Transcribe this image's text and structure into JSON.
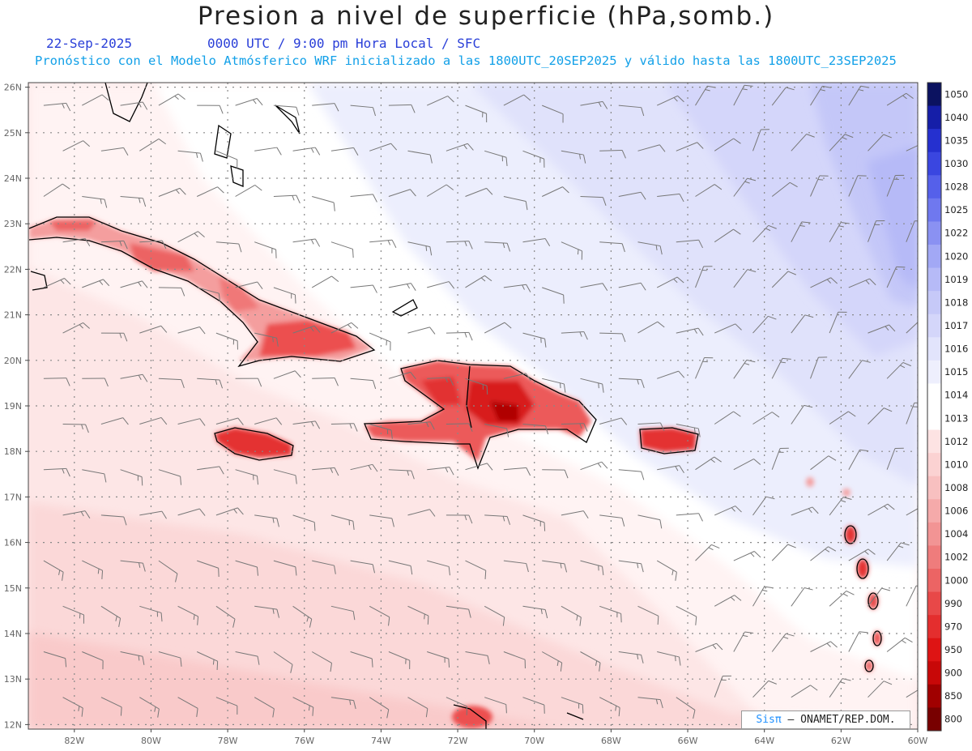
{
  "header": {
    "title": "Presion a nivel de superficie (hPa,somb.)",
    "date": "22-Sep-2025",
    "valid_time": "0000 UTC / 9:00 pm Hora Local / SFC",
    "forecast_note": "Pronóstico con el Modelo Atmósferico WRF inicializado a las 1800UTC_20SEP2025 y válido hasta las 1800UTC_23SEP2025"
  },
  "map": {
    "lat_labels": [
      "26N",
      "25N",
      "24N",
      "23N",
      "22N",
      "21N",
      "20N",
      "19N",
      "18N",
      "17N",
      "16N",
      "15N",
      "14N",
      "13N",
      "12N"
    ],
    "lat_values": [
      26,
      25,
      24,
      23,
      22,
      21,
      20,
      19,
      18,
      17,
      16,
      15,
      14,
      13,
      12
    ],
    "lon_labels": [
      "82W",
      "80W",
      "78W",
      "76W",
      "74W",
      "72W",
      "70W",
      "68W",
      "66W",
      "64W",
      "62W",
      "60W"
    ],
    "lon_values": [
      -82,
      -80,
      -78,
      -76,
      -74,
      -72,
      -70,
      -68,
      -66,
      -64,
      -62,
      -60
    ],
    "lon_range": [
      -83.2,
      -60
    ],
    "lat_range": [
      11.9,
      26.1
    ],
    "grid": true
  },
  "colorbar": {
    "labels": [
      "1050",
      "1040",
      "1035",
      "1030",
      "1028",
      "1025",
      "1022",
      "1020",
      "1019",
      "1018",
      "1017",
      "1016",
      "1015",
      "1014",
      "1013",
      "1012",
      "1010",
      "1008",
      "1006",
      "1004",
      "1002",
      "1000",
      "990",
      "970",
      "950",
      "900",
      "850",
      "800"
    ],
    "colors": [
      "#0b1260",
      "#151ea8",
      "#2530cf",
      "#3a46e0",
      "#5560ea",
      "#6f78ef",
      "#8a91f2",
      "#a2a8f5",
      "#b6baf7",
      "#c6c9f8",
      "#d4d6fa",
      "#e2e4fc",
      "#eeeffd",
      "#ffffff",
      "#ffffff",
      "#fde3e3",
      "#fbd2d2",
      "#f8c0c0",
      "#f5aaaa",
      "#f29494",
      "#ef7c7c",
      "#ec6464",
      "#e84848",
      "#e42e2e",
      "#de1414",
      "#c80808",
      "#a00000",
      "#780000"
    ]
  },
  "credit": {
    "brand": "Sisπ",
    "org": "– ONAMET/REP.DOM."
  }
}
